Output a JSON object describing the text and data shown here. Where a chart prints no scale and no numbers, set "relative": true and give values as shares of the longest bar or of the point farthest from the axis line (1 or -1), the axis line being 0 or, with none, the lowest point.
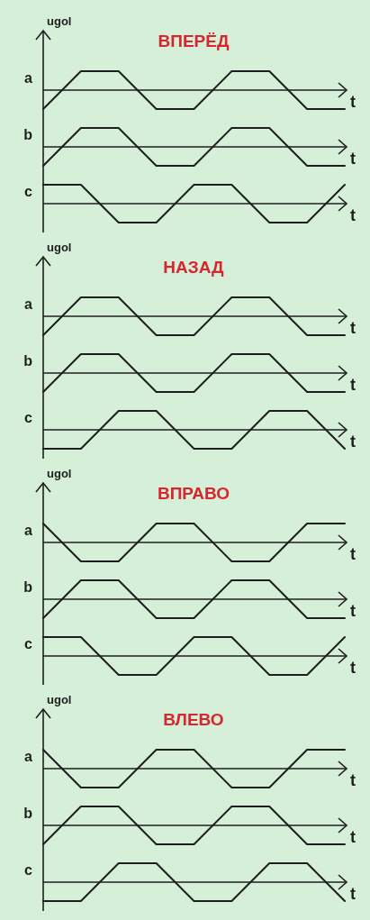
{
  "chart_data": [
    {
      "type": "line",
      "title": "ВПЕРЁД",
      "ylabel": "ugol",
      "xlabel": "t",
      "relative": true,
      "categories": [
        null,
        null,
        null,
        null,
        null,
        null,
        null,
        null,
        null
      ],
      "series": [
        {
          "name": "a",
          "color": "#1e1e1e",
          "values": [
            -1,
            1,
            1,
            -1,
            -1,
            1,
            1,
            -1,
            -1
          ]
        }
      ]
    },
    {
      "type": "line",
      "xlabel": "t",
      "relative": true,
      "categories": [
        null,
        null,
        null,
        null,
        null,
        null,
        null,
        null,
        null
      ],
      "series": [
        {
          "name": "b",
          "color": "#1e1e1e",
          "values": [
            -1,
            1,
            1,
            -1,
            -1,
            1,
            1,
            -1,
            -1
          ]
        }
      ]
    },
    {
      "type": "line",
      "xlabel": "t",
      "relative": true,
      "categories": [
        null,
        null,
        null,
        null,
        null,
        null,
        null,
        null,
        null
      ],
      "series": [
        {
          "name": "c",
          "color": "#1e1e1e",
          "values": [
            1,
            1,
            -1,
            -1,
            1,
            1,
            -1,
            -1,
            1
          ]
        }
      ]
    },
    {
      "type": "line",
      "title": "НАЗАД",
      "ylabel": "ugol",
      "xlabel": "t",
      "relative": true,
      "categories": [
        null,
        null,
        null,
        null,
        null,
        null,
        null,
        null,
        null
      ],
      "series": [
        {
          "name": "a",
          "color": "#1e1e1e",
          "values": [
            -1,
            1,
            1,
            -1,
            -1,
            1,
            1,
            -1,
            -1
          ]
        }
      ]
    },
    {
      "type": "line",
      "xlabel": "t",
      "relative": true,
      "categories": [
        null,
        null,
        null,
        null,
        null,
        null,
        null,
        null,
        null
      ],
      "series": [
        {
          "name": "b",
          "color": "#1e1e1e",
          "values": [
            -1,
            1,
            1,
            -1,
            -1,
            1,
            1,
            -1,
            -1
          ]
        }
      ]
    },
    {
      "type": "line",
      "xlabel": "t",
      "relative": true,
      "categories": [
        null,
        null,
        null,
        null,
        null,
        null,
        null,
        null,
        null
      ],
      "series": [
        {
          "name": "c",
          "color": "#1e1e1e",
          "values": [
            -1,
            -1,
            1,
            1,
            -1,
            -1,
            1,
            1,
            -1
          ]
        }
      ]
    },
    {
      "type": "line",
      "title": "ВПРАВО",
      "ylabel": "ugol",
      "xlabel": "t",
      "relative": true,
      "categories": [
        null,
        null,
        null,
        null,
        null,
        null,
        null,
        null,
        null
      ],
      "series": [
        {
          "name": "a",
          "color": "#1e1e1e",
          "values": [
            1,
            -1,
            -1,
            1,
            1,
            -1,
            -1,
            1,
            1
          ]
        }
      ]
    },
    {
      "type": "line",
      "xlabel": "t",
      "relative": true,
      "categories": [
        null,
        null,
        null,
        null,
        null,
        null,
        null,
        null,
        null
      ],
      "series": [
        {
          "name": "b",
          "color": "#1e1e1e",
          "values": [
            -1,
            1,
            1,
            -1,
            -1,
            1,
            1,
            -1,
            -1
          ]
        }
      ]
    },
    {
      "type": "line",
      "xlabel": "t",
      "relative": true,
      "categories": [
        null,
        null,
        null,
        null,
        null,
        null,
        null,
        null,
        null
      ],
      "series": [
        {
          "name": "c",
          "color": "#1e1e1e",
          "values": [
            1,
            1,
            -1,
            -1,
            1,
            1,
            -1,
            -1,
            1
          ]
        }
      ]
    },
    {
      "type": "line",
      "title": "ВЛЕВО",
      "ylabel": "ugol",
      "xlabel": "t",
      "relative": true,
      "categories": [
        null,
        null,
        null,
        null,
        null,
        null,
        null,
        null,
        null
      ],
      "series": [
        {
          "name": "a",
          "color": "#1e1e1e",
          "values": [
            1,
            -1,
            -1,
            1,
            1,
            -1,
            -1,
            1,
            1
          ]
        }
      ]
    },
    {
      "type": "line",
      "xlabel": "t",
      "relative": true,
      "categories": [
        null,
        null,
        null,
        null,
        null,
        null,
        null,
        null,
        null
      ],
      "series": [
        {
          "name": "b",
          "color": "#1e1e1e",
          "values": [
            -1,
            1,
            1,
            -1,
            -1,
            1,
            1,
            -1,
            -1
          ]
        }
      ]
    },
    {
      "type": "line",
      "xlabel": "t",
      "relative": true,
      "categories": [
        null,
        null,
        null,
        null,
        null,
        null,
        null,
        null,
        null
      ],
      "series": [
        {
          "name": "c",
          "color": "#1e1e1e",
          "values": [
            -1,
            -1,
            1,
            1,
            -1,
            -1,
            1,
            1,
            -1
          ]
        }
      ]
    }
  ]
}
